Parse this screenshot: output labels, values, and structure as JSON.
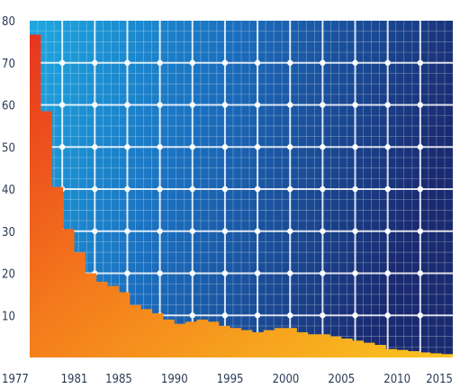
{
  "chart_data": {
    "type": "area",
    "title": "",
    "xlabel": "",
    "ylabel": "",
    "ylim": [
      0,
      80
    ],
    "xlim": [
      1977,
      2015
    ],
    "y_ticks": [
      10,
      20,
      30,
      40,
      50,
      60,
      70,
      80
    ],
    "x_tick_labels": [
      "1977",
      "1981",
      "1985",
      "1990",
      "1995",
      "2000",
      "2005",
      "2010",
      "2015"
    ],
    "background": "solar-panel-cells",
    "grid": false,
    "series": [
      {
        "x": [
          1977,
          1978,
          1979,
          1980,
          1981,
          1982,
          1983,
          1984,
          1985,
          1986,
          1987,
          1988,
          1989,
          1990,
          1991,
          1992,
          1993,
          1994,
          1995,
          1996,
          1997,
          1998,
          1999,
          2000,
          2001,
          2002,
          2003,
          2004,
          2005,
          2006,
          2007,
          2008,
          2009,
          2010,
          2011,
          2012,
          2013,
          2014,
          2015
        ],
        "y": [
          76.7,
          58.5,
          40.5,
          30.5,
          25.0,
          20.0,
          18.0,
          17.0,
          15.5,
          12.5,
          11.5,
          10.5,
          9.0,
          8.0,
          8.5,
          9.0,
          8.5,
          7.5,
          7.0,
          6.5,
          6.0,
          6.5,
          7.0,
          7.0,
          6.0,
          5.5,
          5.5,
          5.0,
          4.5,
          4.0,
          3.5,
          3.0,
          2.0,
          1.8,
          1.5,
          1.2,
          1.0,
          0.8,
          0.6
        ]
      }
    ],
    "colors": {
      "fill_top": "#e8341e",
      "fill_mid": "#f47a1c",
      "fill_bottom": "#f9c520",
      "panel_light": "#1ea8e0",
      "panel_dark": "#1a2a70",
      "cell_line": "#ffffff",
      "tick_text": "#2a3a55"
    }
  }
}
